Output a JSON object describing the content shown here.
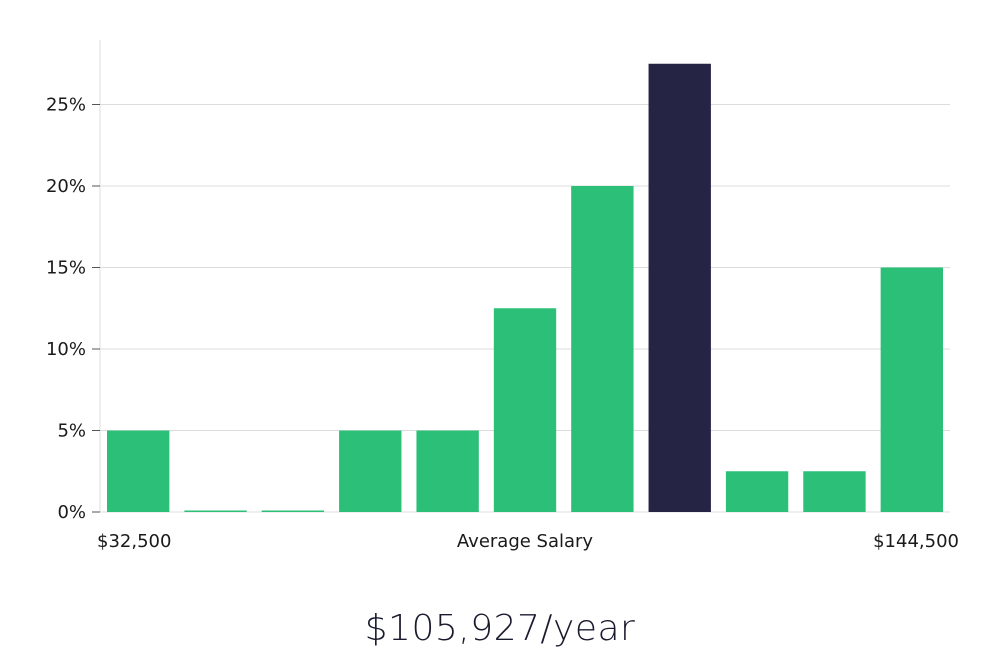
{
  "chart_data": {
    "type": "bar",
    "title": "",
    "xlabel": "Average Salary",
    "x_min_label": "$32,500",
    "x_max_label": "$144,500",
    "ylabel": "",
    "ylim": [
      0,
      28
    ],
    "y_ticks": [
      0,
      5,
      10,
      15,
      20,
      25
    ],
    "y_tick_labels": [
      "0%",
      "5%",
      "10%",
      "15%",
      "20%",
      "25%"
    ],
    "grid": true,
    "values": [
      5,
      0,
      0,
      5,
      5,
      12.5,
      20,
      27.5,
      2.5,
      2.5,
      15
    ],
    "highlight_index": 7,
    "colors": {
      "bar": "#2bbf78",
      "highlight": "#262445",
      "grid": "#dcdcdc"
    }
  },
  "summary": {
    "average_salary_text": "$105,927/year"
  }
}
